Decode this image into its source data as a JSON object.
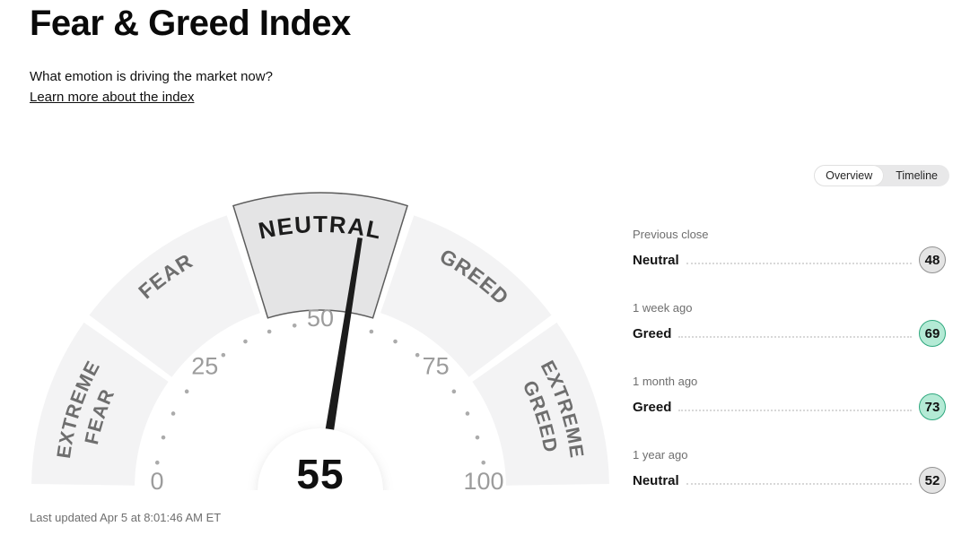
{
  "header": {
    "title": "Fear & Greed Index",
    "subtitle": "What emotion is driving the market now?",
    "link": "Learn more about the index"
  },
  "view_toggle": {
    "options": [
      {
        "label": "Overview",
        "selected": true
      },
      {
        "label": "Timeline",
        "selected": false
      }
    ]
  },
  "chart_data": {
    "type": "gauge",
    "title": "Fear & Greed Index",
    "value": 55,
    "min": 0,
    "max": 100,
    "current_rating": "NEUTRAL",
    "tick_labels": [
      0,
      25,
      50,
      75,
      100
    ],
    "dot_step": 5,
    "segments": [
      {
        "label": "EXTREME FEAR",
        "lines": [
          "EXTREME",
          "FEAR"
        ],
        "active": false
      },
      {
        "label": "FEAR",
        "lines": [
          "FEAR"
        ],
        "active": false
      },
      {
        "label": "NEUTRAL",
        "lines": [
          "NEUTRAL"
        ],
        "active": true
      },
      {
        "label": "GREED",
        "lines": [
          "GREED"
        ],
        "active": false
      },
      {
        "label": "EXTREME GREED",
        "lines": [
          "EXTREME",
          "GREED"
        ],
        "active": false
      }
    ],
    "colors": {
      "segment": "#f3f3f4",
      "segment_active": "#e4e4e5",
      "segment_active_border": "#5c5c5c",
      "label": "#6e6e6e",
      "label_active": "#1c1c1c",
      "tick_text": "#9c9c9c",
      "dot": "#ababab",
      "needle": "#1c1c1c",
      "value_text": "#101010"
    }
  },
  "history": {
    "rows": [
      {
        "period": "Previous close",
        "rating": "Neutral",
        "value": 48,
        "tone": "neutral"
      },
      {
        "period": "1 week ago",
        "rating": "Greed",
        "value": 69,
        "tone": "greed"
      },
      {
        "period": "1 month ago",
        "rating": "Greed",
        "value": 73,
        "tone": "greed"
      },
      {
        "period": "1 year ago",
        "rating": "Neutral",
        "value": 52,
        "tone": "neutral"
      }
    ]
  },
  "badge_tones": {
    "neutral": {
      "bg": "#e4e4e4",
      "border": "#919191"
    },
    "greed": {
      "bg": "#b4ead5",
      "border": "#2fa87e"
    }
  },
  "footer": {
    "last_updated": "Last updated Apr 5 at 8:01:46 AM ET"
  }
}
